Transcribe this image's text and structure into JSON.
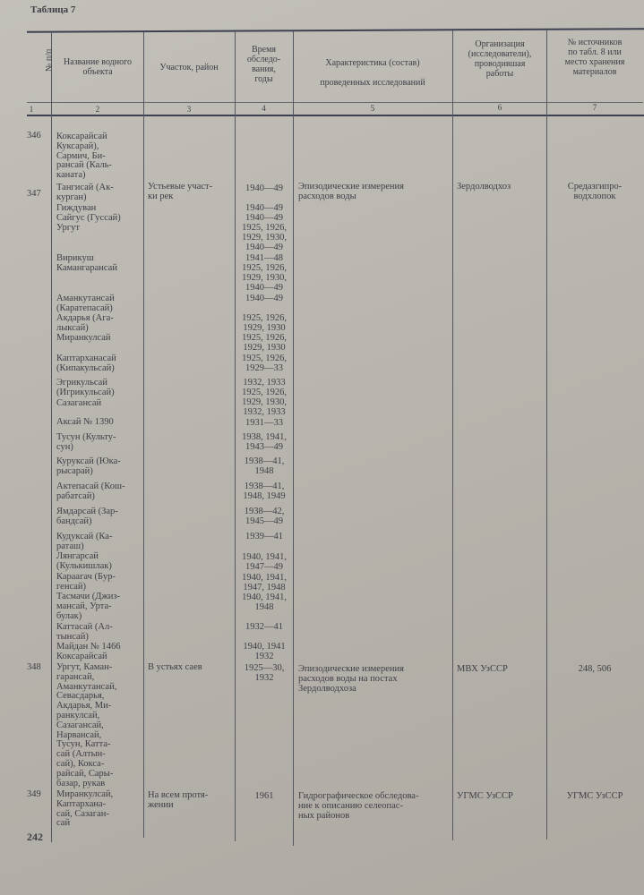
{
  "table_title": "Таблица 7",
  "headers": {
    "col1": "№ п/п",
    "col2": "Название водного объекта",
    "col3": "Участок, район",
    "col4": "Время обследо-\nвания,\nгоды",
    "col5": "Характеристика (состав)\nпроведенных исследований",
    "col6": "Организация\n(исследователи),\nпроводившая\nработы",
    "col7": "№ источников\nпо табл. 8 или\nместо хранения\nматериалов"
  },
  "column_numbers": [
    "1",
    "2",
    "3",
    "4",
    "5",
    "6",
    "7"
  ],
  "rows": [
    {
      "number": "346",
      "names": [
        "Коксарайсай\nКуксарай),\nСармич, Би-\nрансай (Каль-\nканата)"
      ],
      "section": "",
      "years": [],
      "characteristic": "",
      "organization": "",
      "source": ""
    },
    {
      "number": "347",
      "names": [
        "Тангисай (Ак-\nкурган)",
        "Гиждуван",
        "Сайгус (Гуссай)",
        "Ургут",
        "Вирикуш",
        "Камангарансай",
        "Аманкутансай\n(Каратепасай)",
        "Акдарья (Ага-\nлыксай)",
        "Миранкулсай",
        "Каптарханасай\n(Кипакульсай)",
        "Эгрикульсай\n(Игрикульсай)",
        "Сазагансай",
        "Аксай № 1390",
        "Тусун (Культу-\nсун)",
        "Куруксай (Юка-\nрысарай)",
        "Актепасай (Кош-\nрабатсай)",
        "Ямдарсай (Зар-\nбандсай)",
        "Кудуксай (Ка-\nраташ)",
        "Лянгарсай\n(Кулькишлак)",
        "Караагач (Бур-\nгенсай)",
        "Тасмачи (Джиз-\nмансай, Урта-\nбулак)",
        "Каттасай (Ал-\nтынсай)",
        "Майдан № 1466",
        "Коксарайсай"
      ],
      "section": "Устьевые участ-\nки рек",
      "years": [
        "1940—49",
        "1940—49",
        "1940—49",
        "1925, 1926,\n1929, 1930,\n1940—49",
        "1941—48",
        "1925, 1926,\n1929, 1930,\n1940—49",
        "1940—49",
        "1925, 1926,\n1929, 1930",
        "1925, 1926,\n1929, 1930",
        "1925, 1926,\n1929—33",
        "1932, 1933",
        "1925, 1926,\n1929, 1930,\n1932, 1933",
        "1931—33",
        "1938, 1941,\n1943—49",
        "1938—41,\n1948",
        "1938—41,\n1948, 1949",
        "1938—42,\n1945—49",
        "1939—41",
        "1940, 1941,\n1947—49",
        "1940, 1941,\n1947, 1948",
        "1940, 1941,\n1948",
        "1932—41",
        "1940, 1941",
        "1932"
      ],
      "characteristic": "Эпизодические измерения\n   расходов воды",
      "organization": "Зердолводхоз",
      "source": "Средазгипро-\nводхлопок"
    },
    {
      "number": "348",
      "names": [
        "Ургут, Каман-\n  гарансай,\n    Аманкутансай,\n  Севасдарья,\n  Акдарья, Ми-\n  ранкулсай,\n  Сазагансай,\n  Нарвансай,\n  Тусун, Катта-\n  сай (Алтын-\n  сай), Кокса-\n  райсай, Сары-\n  базар, рукав"
      ],
      "section": "В устьях саев",
      "years": [
        "1925—30,\n1932"
      ],
      "characteristic": "Эпизодические измерения\n   расходов воды на постах\n   Зердолводхоза",
      "organization": "МВХ УзССР",
      "source": "248, 506"
    },
    {
      "number": "349",
      "names": [
        "Миранкулсай,\n  Каптархана-\n  сай, Сазаган-\n  сай"
      ],
      "section": "На всем протя-\n   жении",
      "years": [
        "1961"
      ],
      "characteristic": "Гидрографическое обследова-\n   ние к описанию селеопас-\n   ных районов",
      "organization": "УГМС УзССР",
      "source": "УГМС УзССР"
    }
  ],
  "page_number": "242"
}
